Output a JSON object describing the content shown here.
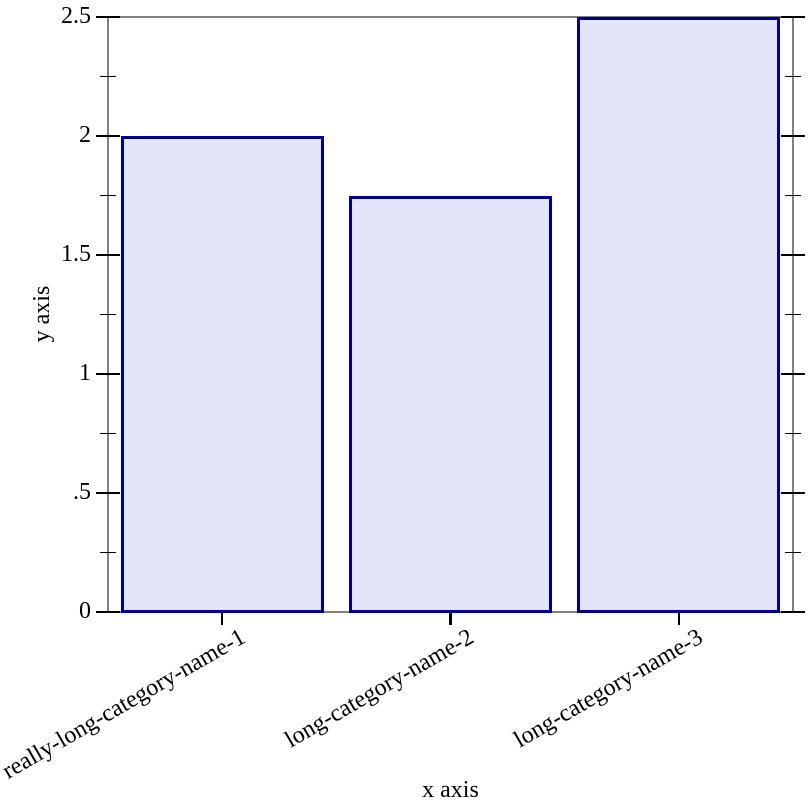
{
  "chart_data": {
    "type": "bar",
    "title": "",
    "xlabel": "x axis",
    "ylabel": "y axis",
    "categories": [
      "really-long-category-name-1",
      "long-category-name-2",
      "long-category-name-3"
    ],
    "values": [
      2,
      1.75,
      2.5
    ],
    "ylim": [
      0,
      2.5
    ],
    "yticks": [
      {
        "value": 0,
        "label": "0"
      },
      {
        "value": 0.5,
        "label": ".5"
      },
      {
        "value": 1,
        "label": "1"
      },
      {
        "value": 1.5,
        "label": "1.5"
      },
      {
        "value": 2,
        "label": "2"
      },
      {
        "value": 2.5,
        "label": "2.5"
      }
    ],
    "y_minor_ticks": [
      0.25,
      0.75,
      1.25,
      1.75,
      2.25
    ],
    "grid": false,
    "legend": "none",
    "category_label_angle_deg": -30,
    "colors": {
      "bar_fill": "#e3e6fa",
      "bar_border": "#00008b",
      "frame": "#808080",
      "tick": "#000000",
      "text": "#000000",
      "background": "#ffffff"
    }
  }
}
